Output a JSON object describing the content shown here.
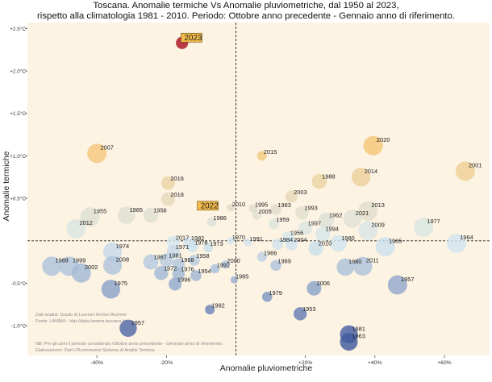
{
  "chart_data": {
    "type": "scatter",
    "title": "Toscana. Anomalie termiche Vs Anomalie pluviometriche, dal 1950 al 2023,",
    "subtitle": "rispetto alla climatologia 1981 - 2010. Periodo: Ottobre anno precedente - Gennaio anno di riferimento.",
    "xlabel": "Anomalie pluviometriche",
    "ylabel": "Anomalie termiche",
    "x_ticks": [
      {
        "value": -40,
        "label": "-40%"
      },
      {
        "value": -20,
        "label": "-20%"
      },
      {
        "value": 20,
        "label": "+20%"
      },
      {
        "value": 40,
        "label": "+40%"
      },
      {
        "value": 60,
        "label": "+60%"
      }
    ],
    "y_ticks": [
      {
        "value": 1.5,
        "label": "+1.5°C"
      },
      {
        "value": 1.0,
        "label": "+1.0°C"
      },
      {
        "value": 0.5,
        "label": "+0.5°C"
      },
      {
        "value": 0.0,
        "label": "0.0°C"
      },
      {
        "value": -0.5,
        "label": "-0.5°C"
      },
      {
        "value": -1.0,
        "label": "-1.0°C"
      }
    ],
    "y_tick_display": [
      {
        "value": 2.5,
        "label": "+2.5°C"
      },
      {
        "value": 2.0,
        "label": "+2.0°C"
      },
      {
        "value": 1.5,
        "label": "+1.5°C"
      },
      {
        "value": 1.0,
        "label": "+1.0°C"
      },
      {
        "value": 0.5,
        "label": "+0.5°C"
      },
      {
        "value": -0.5,
        "label": "-0.5°C"
      },
      {
        "value": -1.0,
        "label": "-1.0°C"
      }
    ],
    "xlim": [
      -60,
      73
    ],
    "ylim": [
      -1.35,
      2.57
    ],
    "grid": false,
    "reference_lines": {
      "x": 0,
      "y": 0
    },
    "highlighted_years": [
      "2023",
      "2022"
    ],
    "points": [
      {
        "year": "2023",
        "x": -15.5,
        "y": 2.33
      },
      {
        "year": "2020",
        "x": 39.5,
        "y": 1.12
      },
      {
        "year": "2007",
        "x": -40,
        "y": 1.03
      },
      {
        "year": "2015",
        "x": 7.5,
        "y": 1.0
      },
      {
        "year": "2001",
        "x": 66,
        "y": 0.82
      },
      {
        "year": "2014",
        "x": 36,
        "y": 0.75
      },
      {
        "year": "1988",
        "x": 24,
        "y": 0.7
      },
      {
        "year": "2016",
        "x": -19.5,
        "y": 0.68
      },
      {
        "year": "2003",
        "x": 16,
        "y": 0.52
      },
      {
        "year": "2018",
        "x": -19.5,
        "y": 0.49
      },
      {
        "year": "2022",
        "x": -9.5,
        "y": 0.38
      },
      {
        "year": "2010",
        "x": -1.5,
        "y": 0.39
      },
      {
        "year": "1995",
        "x": 5,
        "y": 0.38
      },
      {
        "year": "1983",
        "x": 11.5,
        "y": 0.37
      },
      {
        "year": "2005",
        "x": 6,
        "y": 0.3
      },
      {
        "year": "1993",
        "x": 19,
        "y": 0.33
      },
      {
        "year": "2013",
        "x": 38,
        "y": 0.35
      },
      {
        "year": "1955",
        "x": -42,
        "y": 0.28
      },
      {
        "year": "1985",
        "x": -31.5,
        "y": 0.3
      },
      {
        "year": "1956",
        "x": -24.5,
        "y": 0.3
      },
      {
        "year": "1986",
        "x": -7,
        "y": 0.22
      },
      {
        "year": "1959",
        "x": 11,
        "y": 0.2
      },
      {
        "year": "1962",
        "x": 26,
        "y": 0.24
      },
      {
        "year": "2021",
        "x": 33.5,
        "y": 0.26
      },
      {
        "year": "1977",
        "x": 54,
        "y": 0.16
      },
      {
        "year": "2012",
        "x": -46,
        "y": 0.14
      },
      {
        "year": "1997",
        "x": 20,
        "y": 0.15
      },
      {
        "year": "1994",
        "x": 25,
        "y": 0.08
      },
      {
        "year": "2009",
        "x": 38,
        "y": 0.12
      },
      {
        "year": "1956",
        "x": 15,
        "y": 0.04
      },
      {
        "year": "1970",
        "x": -1.5,
        "y": 0.0
      },
      {
        "year": "1991",
        "x": 3.5,
        "y": -0.02
      },
      {
        "year": "1984",
        "x": 12,
        "y": -0.04
      },
      {
        "year": "2004",
        "x": 16,
        "y": -0.04
      },
      {
        "year": "1980",
        "x": 29.5,
        "y": -0.03
      },
      {
        "year": "1964",
        "x": 63.5,
        "y": -0.03
      },
      {
        "year": "2017",
        "x": -18,
        "y": -0.02
      },
      {
        "year": "1982",
        "x": -13.5,
        "y": -0.02
      },
      {
        "year": "1978",
        "x": -12.5,
        "y": -0.07
      },
      {
        "year": "1973",
        "x": -8,
        "y": -0.08
      },
      {
        "year": "2010",
        "x": 23,
        "y": -0.09
      },
      {
        "year": "1965",
        "x": 43,
        "y": -0.07
      },
      {
        "year": "1974",
        "x": -35.5,
        "y": -0.13
      },
      {
        "year": "1971",
        "x": -18,
        "y": -0.13
      },
      {
        "year": "1966",
        "x": 7.5,
        "y": -0.19
      },
      {
        "year": "1967",
        "x": -24.5,
        "y": -0.25
      },
      {
        "year": "1981",
        "x": -20,
        "y": -0.23
      },
      {
        "year": "1958",
        "x": -12,
        "y": -0.23
      },
      {
        "year": "1968",
        "x": -16.5,
        "y": -0.28
      },
      {
        "year": "2000",
        "x": -3,
        "y": -0.28
      },
      {
        "year": "1989",
        "x": 11.5,
        "y": -0.29
      },
      {
        "year": "1980",
        "x": 31.5,
        "y": -0.31
      },
      {
        "year": "2011",
        "x": 36.5,
        "y": -0.3
      },
      {
        "year": "1969",
        "x": -53,
        "y": -0.3
      },
      {
        "year": "1999",
        "x": -48,
        "y": -0.3
      },
      {
        "year": "2008",
        "x": -35.5,
        "y": -0.29
      },
      {
        "year": "2002",
        "x": -44.5,
        "y": -0.38
      },
      {
        "year": "1972",
        "x": -21.5,
        "y": -0.38
      },
      {
        "year": "1976",
        "x": -16.5,
        "y": -0.39
      },
      {
        "year": "1992",
        "x": -6,
        "y": -0.33
      },
      {
        "year": "1954",
        "x": -11.5,
        "y": -0.41
      },
      {
        "year": "1985",
        "x": -0.5,
        "y": -0.46
      },
      {
        "year": "1996",
        "x": -17.5,
        "y": -0.51
      },
      {
        "year": "1957",
        "x": 46.5,
        "y": -0.52
      },
      {
        "year": "1975",
        "x": -36,
        "y": -0.57
      },
      {
        "year": "2006",
        "x": 22.5,
        "y": -0.56
      },
      {
        "year": "1979",
        "x": 9,
        "y": -0.66
      },
      {
        "year": "1992",
        "x": -7.5,
        "y": -0.81
      },
      {
        "year": "1953",
        "x": 18.5,
        "y": -0.86
      },
      {
        "year": "1957",
        "x": -31,
        "y": -1.03
      },
      {
        "year": "1981",
        "x": 32.5,
        "y": -1.1
      },
      {
        "year": "1963",
        "x": 32.5,
        "y": -1.19
      }
    ]
  },
  "notes": [
    "Dati analisi: Grado di Lorenzo Archivi Archivio",
    "Fonte: LAMMA - http://data.lamma.toscana.it",
    "NB: Per gli anni il periodo considerato Ottobre anno precedente - Gennaio anno di riferimento.",
    "Elaborazione: Dati LPluviometria Sistema di Analisi Termica"
  ],
  "colors": {
    "background": "#fdf3e3",
    "highlight": "#b93a44",
    "label_box": "#f4bc4a",
    "axis_lines": "#222222",
    "cold": "#3f5a9e",
    "neutral": "#d6e9f2",
    "warm": "#f7c677"
  }
}
